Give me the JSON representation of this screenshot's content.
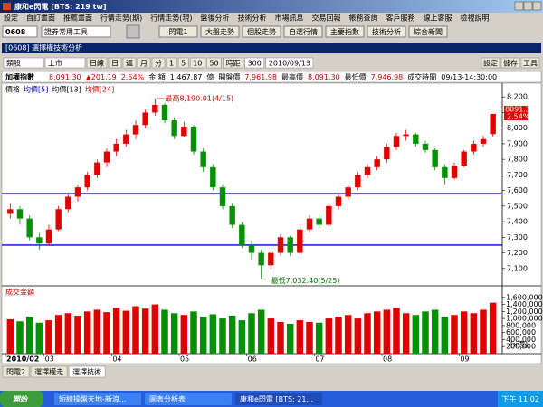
{
  "window": {
    "title": "康和e閃電 [BTS: 219 tw]"
  },
  "menu": [
    "設定",
    "自訂畫面",
    "推薦畫面",
    "行情走勢(期)",
    "行情走勢(現)",
    "盤後分析",
    "技術分析",
    "市場訊息",
    "交易回報",
    "帳務查詢",
    "客戶服務",
    "線上客服",
    "檢視說明"
  ],
  "toolbar": {
    "code": "0608",
    "tool": "證券常用工具",
    "buttons": [
      "閃電1",
      "大盤走勢",
      "個股走勢",
      "自選行情",
      "主要指數",
      "技術分析",
      "綜合新聞"
    ]
  },
  "panel": {
    "title": "[0608] 選擇權技術分析",
    "controls": [
      "類股",
      "上市",
      "日線",
      "日",
      "週",
      "月",
      "分",
      "1",
      "5",
      "10",
      "50",
      "時距",
      "300",
      "2010/09/13"
    ],
    "actions": [
      "設定",
      "儲存",
      "工具"
    ]
  },
  "quote": {
    "name": "加權指數",
    "price": "8,091.30",
    "change": "▲201.19",
    "percent": "2.54%",
    "amount_label": "金 額",
    "amount": "1,467.87",
    "amount_unit": "億",
    "open_label": "開盤價",
    "open": "7,961.98",
    "high_label": "最高價",
    "high": "8,091.30",
    "low_label": "最低價",
    "low": "7,946.98",
    "time_label": "成交時間",
    "time": "09/13-14:30:00"
  },
  "chart": {
    "type": "candlestick",
    "legend": [
      "價格",
      "均價[5]",
      "均價[13]",
      "均價[24]"
    ],
    "legend_colors": [
      "#000000",
      "#0000cc",
      "#000000",
      "#cc0000"
    ],
    "categories": [
      "2010/02",
      null,
      null,
      null,
      "03",
      null,
      null,
      null,
      null,
      null,
      null,
      "04",
      null,
      null,
      null,
      null,
      null,
      null,
      "05",
      null,
      null,
      null,
      null,
      null,
      null,
      "06",
      null,
      null,
      null,
      null,
      null,
      null,
      "07",
      null,
      null,
      null,
      null,
      null,
      null,
      "08",
      null,
      null,
      null,
      null,
      null,
      null,
      null,
      "09",
      null,
      null,
      null
    ],
    "candles": [
      [
        7450,
        7520,
        7420,
        7480
      ],
      [
        7480,
        7500,
        7380,
        7420
      ],
      [
        7420,
        7440,
        7280,
        7300
      ],
      [
        7300,
        7330,
        7220,
        7260
      ],
      [
        7260,
        7380,
        7250,
        7350
      ],
      [
        7350,
        7500,
        7340,
        7480
      ],
      [
        7480,
        7580,
        7460,
        7560
      ],
      [
        7560,
        7640,
        7530,
        7620
      ],
      [
        7620,
        7720,
        7600,
        7700
      ],
      [
        7700,
        7800,
        7680,
        7780
      ],
      [
        7780,
        7870,
        7750,
        7850
      ],
      [
        7850,
        7930,
        7820,
        7900
      ],
      [
        7900,
        7990,
        7880,
        7960
      ],
      [
        7960,
        8050,
        7930,
        8020
      ],
      [
        8020,
        8120,
        8000,
        8100
      ],
      [
        8100,
        8190.01,
        8080,
        8150
      ],
      [
        8150,
        8160,
        8030,
        8050
      ],
      [
        8050,
        8070,
        7930,
        7950
      ],
      [
        7950,
        8040,
        7940,
        8010
      ],
      [
        8010,
        8020,
        7830,
        7850
      ],
      [
        7850,
        7870,
        7720,
        7750
      ],
      [
        7750,
        7770,
        7600,
        7620
      ],
      [
        7620,
        7640,
        7480,
        7500
      ],
      [
        7500,
        7520,
        7360,
        7380
      ],
      [
        7380,
        7400,
        7230,
        7250
      ],
      [
        7250,
        7280,
        7150,
        7200
      ],
      [
        7200,
        7220,
        7032.4,
        7120
      ],
      [
        7120,
        7220,
        7100,
        7200
      ],
      [
        7200,
        7320,
        7180,
        7300
      ],
      [
        7300,
        7310,
        7180,
        7200
      ],
      [
        7200,
        7370,
        7190,
        7350
      ],
      [
        7350,
        7440,
        7330,
        7420
      ],
      [
        7420,
        7450,
        7360,
        7380
      ],
      [
        7380,
        7520,
        7370,
        7500
      ],
      [
        7500,
        7580,
        7480,
        7560
      ],
      [
        7560,
        7640,
        7540,
        7620
      ],
      [
        7620,
        7720,
        7600,
        7700
      ],
      [
        7700,
        7770,
        7680,
        7750
      ],
      [
        7750,
        7820,
        7730,
        7800
      ],
      [
        7800,
        7900,
        7780,
        7880
      ],
      [
        7880,
        7970,
        7860,
        7950
      ],
      [
        7950,
        7990,
        7920,
        7960
      ],
      [
        7960,
        7970,
        7880,
        7900
      ],
      [
        7900,
        7920,
        7840,
        7860
      ],
      [
        7860,
        7870,
        7730,
        7750
      ],
      [
        7750,
        7770,
        7640,
        7680
      ],
      [
        7680,
        7780,
        7670,
        7760
      ],
      [
        7760,
        7860,
        7750,
        7850
      ],
      [
        7850,
        7920,
        7830,
        7900
      ],
      [
        7900,
        7950,
        7880,
        7930
      ],
      [
        7961.98,
        8091.3,
        7946.98,
        8091.3
      ]
    ],
    "up_color": "#e00000",
    "down_color": "#009000",
    "ylim": [
      7000,
      8300
    ],
    "yticks": [
      {
        "value": 8200,
        "label": "8,200"
      },
      {
        "value": 8100,
        "label": "8,100"
      },
      {
        "value": 8000,
        "label": "8,000"
      },
      {
        "value": 7900,
        "label": "7,900"
      },
      {
        "value": 7800,
        "label": "7,800"
      },
      {
        "value": 7700,
        "label": "7,700"
      },
      {
        "value": 7600,
        "label": "7,600"
      },
      {
        "value": 7500,
        "label": "7,500"
      },
      {
        "value": 7400,
        "label": "7,400"
      },
      {
        "value": 7300,
        "label": "7,300"
      },
      {
        "value": 7200,
        "label": "7,200"
      },
      {
        "value": 7100,
        "label": "7,100"
      }
    ],
    "levels": [
      7580,
      7250
    ],
    "level_color": "#0000cc",
    "annotations": [
      {
        "text": "最高8,190.01(4/15)",
        "value": 8190.01
      },
      {
        "text": "最低7,032.40(5/25)",
        "value": 7032.4
      }
    ],
    "last": {
      "price": "8091.30",
      "percent": "2.54%"
    },
    "volume": {
      "title": "成交金額",
      "unit": "[x億]",
      "values": [
        980000,
        920000,
        1050000,
        880000,
        950000,
        1100000,
        1150000,
        1080000,
        1200000,
        1250000,
        1180000,
        1300000,
        1220000,
        1350000,
        1280000,
        1400000,
        1250000,
        1150000,
        1100000,
        1200000,
        1050000,
        1120000,
        1000000,
        1080000,
        950000,
        1150000,
        1250000,
        1000000,
        900000,
        850000,
        950000,
        900000,
        880000,
        1000000,
        1050000,
        1100000,
        1000000,
        1150000,
        1200000,
        1250000,
        1300000,
        1150000,
        1100000,
        1200000,
        1250000,
        1050000,
        1100000,
        1200000,
        1150000,
        1250000,
        1450000
      ],
      "ylim": [
        0,
        1800000
      ],
      "yticks": [
        {
          "value": 1600000,
          "label": "1,600,000"
        },
        {
          "value": 1400000,
          "label": "1,400,000"
        },
        {
          "value": 1200000,
          "label": "1,200,000"
        },
        {
          "value": 1000000,
          "label": "1,000,000"
        },
        {
          "value": 800000,
          "label": "800,000"
        },
        {
          "value": 600000,
          "label": "600,000"
        },
        {
          "value": 400000,
          "label": "400,000"
        },
        {
          "value": 200000,
          "label": "200,000"
        }
      ]
    }
  },
  "tabs": [
    "閃電2",
    "選擇權走",
    "選擇技術"
  ],
  "taskbar": {
    "start": "開始",
    "items": [
      "短線操盤天地-新浪...",
      "圖表分析表",
      "康和e閃電 [BTS: 21..."
    ],
    "clock": "下午 11:02"
  }
}
